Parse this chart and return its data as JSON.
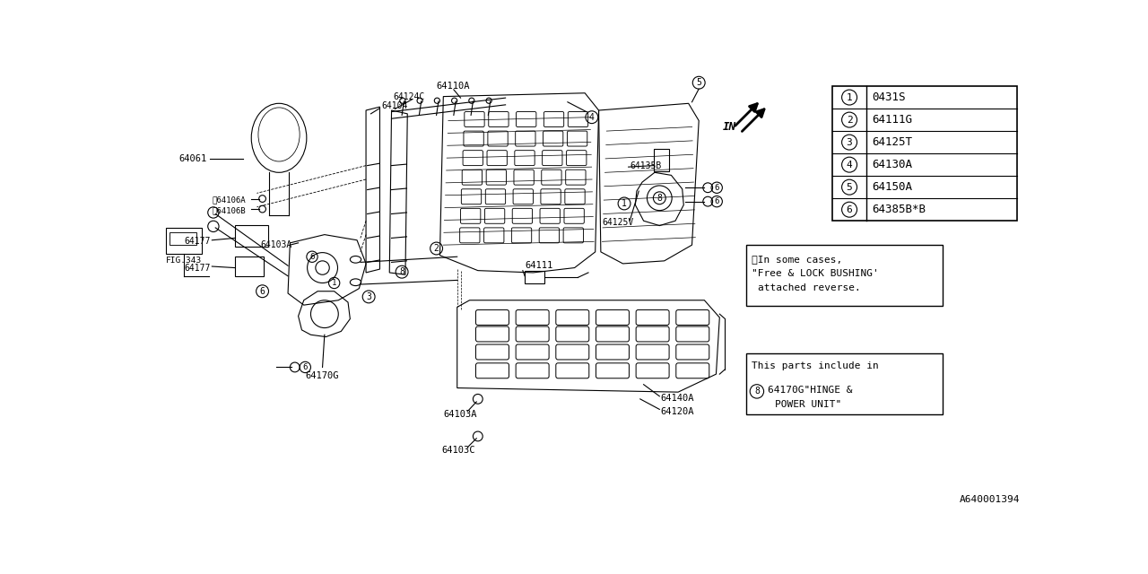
{
  "bg_color": "#ffffff",
  "line_color": "#000000",
  "fig_id": "A640001394",
  "parts_table": [
    {
      "num": "1",
      "code": "0431S"
    },
    {
      "num": "2",
      "code": "64111G"
    },
    {
      "num": "3",
      "code": "64125T"
    },
    {
      "num": "4",
      "code": "64130A"
    },
    {
      "num": "5",
      "code": "64150A"
    },
    {
      "num": "6",
      "code": "64385B*B"
    }
  ]
}
